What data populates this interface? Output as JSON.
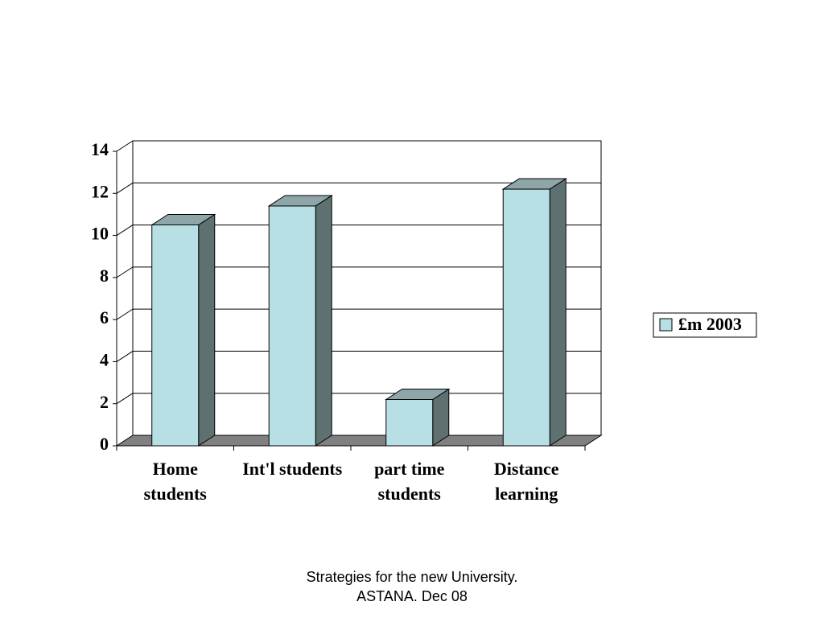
{
  "chart_data": {
    "type": "bar3d",
    "categories": [
      "Home students",
      "Int'l students",
      "part time students",
      "Distance learning"
    ],
    "series": [
      {
        "name": "£m 2003",
        "color": "#b8dfe3",
        "values": [
          10.5,
          11.4,
          2.2,
          12.2
        ]
      }
    ],
    "ylim": [
      0,
      14
    ],
    "yticks": [
      0,
      2,
      4,
      6,
      8,
      10,
      12,
      14
    ],
    "grid": true,
    "legend": "right",
    "annotations": [
      "Strategies for the new University.",
      "ASTANA. Dec 08"
    ]
  }
}
